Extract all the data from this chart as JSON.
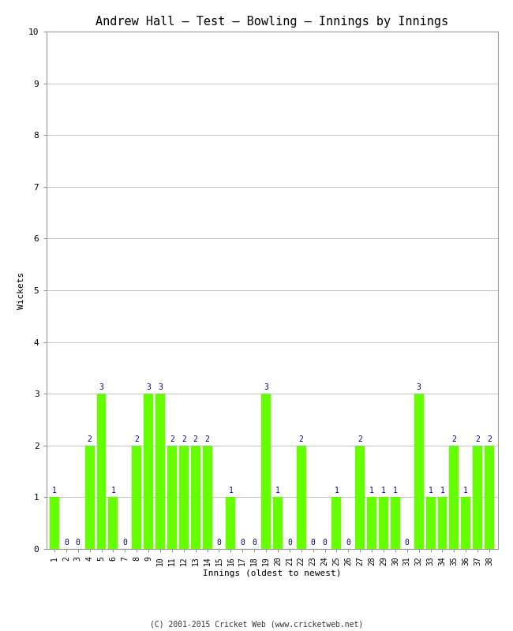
{
  "title": "Andrew Hall – Test – Bowling – Innings by Innings",
  "xlabel": "Innings (oldest to newest)",
  "ylabel": "Wickets",
  "copyright": "(C) 2001-2015 Cricket Web (www.cricketweb.net)",
  "ylim": [
    0,
    10
  ],
  "yticks": [
    0,
    1,
    2,
    3,
    4,
    5,
    6,
    7,
    8,
    9,
    10
  ],
  "bar_color": "#66ff00",
  "bar_edge_color": "#66ff00",
  "label_color": "#000080",
  "innings": [
    1,
    2,
    3,
    4,
    5,
    6,
    7,
    8,
    9,
    10,
    11,
    12,
    13,
    14,
    15,
    16,
    17,
    18,
    19,
    20,
    21,
    22,
    23,
    24,
    25,
    26,
    27,
    28,
    29,
    30,
    31,
    32,
    33,
    34,
    35,
    36,
    37,
    38
  ],
  "wickets": [
    1,
    0,
    0,
    2,
    3,
    1,
    0,
    2,
    3,
    3,
    2,
    2,
    2,
    2,
    0,
    1,
    0,
    0,
    3,
    1,
    0,
    2,
    0,
    0,
    1,
    0,
    2,
    1,
    1,
    1,
    0,
    3,
    1,
    1,
    2,
    1,
    2,
    2
  ],
  "background_color": "#ffffff",
  "grid_color": "#bbbbbb",
  "title_fontsize": 11,
  "axis_fontsize": 8,
  "label_fontsize": 7,
  "tick_fontsize": 7,
  "copyright_fontsize": 7
}
